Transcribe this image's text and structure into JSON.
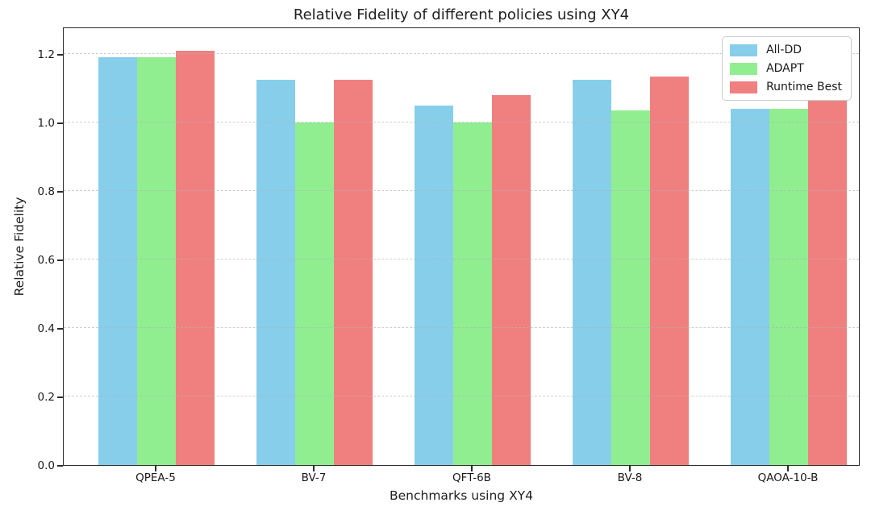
{
  "chart_data": {
    "type": "bar",
    "title": "Relative Fidelity of different policies using XY4",
    "xlabel": "Benchmarks using XY4",
    "ylabel": "Relative Fidelity",
    "categories": [
      "QPEA-5",
      "BV-7",
      "QFT-6B",
      "BV-8",
      "QAOA-10-B"
    ],
    "series": [
      {
        "name": "All-DD",
        "color": "#87CEEB",
        "values": [
          1.19,
          1.125,
          1.05,
          1.125,
          1.04
        ]
      },
      {
        "name": "ADAPT",
        "color": "#90EE90",
        "values": [
          1.19,
          1.0,
          1.0,
          1.035,
          1.04
        ]
      },
      {
        "name": "Runtime Best",
        "color": "#F08080",
        "values": [
          1.21,
          1.125,
          1.08,
          1.135,
          1.065
        ]
      }
    ],
    "ylim": [
      0,
      1.28
    ],
    "yticks": [
      0.0,
      0.2,
      0.4,
      0.6,
      0.8,
      1.0,
      1.2
    ],
    "ytick_labels": [
      "0.0",
      "0.2",
      "0.4",
      "0.6",
      "0.8",
      "1.0",
      "1.2"
    ],
    "grid": "horizontal-dashed",
    "legend_position": "upper right"
  }
}
